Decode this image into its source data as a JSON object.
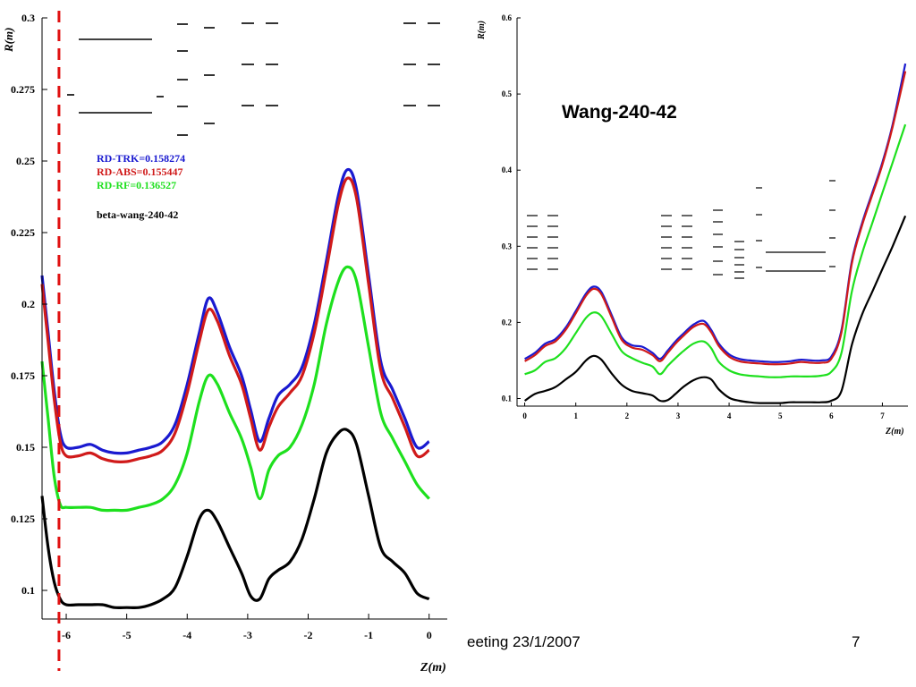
{
  "footer": {
    "text": "eeting 23/1/2007",
    "page_number": "7"
  },
  "colors": {
    "trk": "#1a1ad0",
    "abs": "#d01a1a",
    "rf": "#1ee01e",
    "beta": "#000000",
    "marker": "#e01010"
  },
  "chart_data": [
    {
      "type": "line",
      "title": "",
      "xlabel": "Z(m)",
      "ylabel": "R(m)",
      "xlim": [
        -6.4,
        0.3
      ],
      "ylim": [
        0.09,
        0.3
      ],
      "xticks": [
        -6,
        -5,
        -4,
        -3,
        -2,
        -1,
        0
      ],
      "yticks": [
        0.1,
        0.125,
        0.15,
        0.175,
        0.2,
        0.225,
        0.25,
        0.275,
        0.3
      ],
      "xtick_labels": [
        "-6",
        "-5",
        "-4",
        "-3",
        "-2",
        "-1",
        "0"
      ],
      "ytick_labels": [
        "0.1",
        "0.125",
        "0.15",
        "0.175",
        "0.2",
        "0.225",
        "0.25",
        "0.275",
        "0.3"
      ],
      "vertical_marker_x": -6.12,
      "legend": {
        "placement": "top-left",
        "entries": [
          "RD-TRK=0.158274",
          "RD-ABS=0.155447",
          "RD-RF=0.136527"
        ],
        "note": "beta-wang-240-42"
      },
      "series": [
        {
          "name": "RD-TRK",
          "color_key": "trk",
          "x": [
            -6.4,
            -6.3,
            -6.2,
            -6.1,
            -6.0,
            -5.8,
            -5.6,
            -5.4,
            -5.2,
            -5.0,
            -4.8,
            -4.6,
            -4.4,
            -4.2,
            -4.0,
            -3.8,
            -3.65,
            -3.5,
            -3.3,
            -3.1,
            -2.95,
            -2.8,
            -2.65,
            -2.5,
            -2.3,
            -2.1,
            -1.9,
            -1.7,
            -1.5,
            -1.35,
            -1.2,
            -1.0,
            -0.8,
            -0.6,
            -0.4,
            -0.2,
            0.0
          ],
          "y": [
            0.21,
            0.19,
            0.17,
            0.155,
            0.15,
            0.15,
            0.151,
            0.149,
            0.148,
            0.148,
            0.149,
            0.15,
            0.152,
            0.158,
            0.172,
            0.19,
            0.202,
            0.197,
            0.185,
            0.175,
            0.163,
            0.152,
            0.16,
            0.168,
            0.172,
            0.178,
            0.193,
            0.215,
            0.238,
            0.247,
            0.24,
            0.21,
            0.18,
            0.17,
            0.16,
            0.15,
            0.152
          ]
        },
        {
          "name": "RD-ABS",
          "color_key": "abs",
          "x": [
            -6.4,
            -6.3,
            -6.2,
            -6.1,
            -6.0,
            -5.8,
            -5.6,
            -5.4,
            -5.2,
            -5.0,
            -4.8,
            -4.6,
            -4.4,
            -4.2,
            -4.0,
            -3.8,
            -3.65,
            -3.5,
            -3.3,
            -3.1,
            -2.95,
            -2.8,
            -2.65,
            -2.5,
            -2.3,
            -2.1,
            -1.9,
            -1.7,
            -1.5,
            -1.35,
            -1.2,
            -1.0,
            -0.8,
            -0.6,
            -0.4,
            -0.2,
            0.0
          ],
          "y": [
            0.207,
            0.187,
            0.167,
            0.152,
            0.147,
            0.147,
            0.148,
            0.146,
            0.145,
            0.145,
            0.146,
            0.147,
            0.149,
            0.155,
            0.169,
            0.187,
            0.198,
            0.194,
            0.182,
            0.172,
            0.16,
            0.149,
            0.157,
            0.164,
            0.169,
            0.175,
            0.19,
            0.212,
            0.235,
            0.244,
            0.237,
            0.207,
            0.177,
            0.167,
            0.157,
            0.147,
            0.149
          ]
        },
        {
          "name": "RD-RF",
          "color_key": "rf",
          "x": [
            -6.4,
            -6.3,
            -6.2,
            -6.1,
            -6.0,
            -5.8,
            -5.6,
            -5.4,
            -5.2,
            -5.0,
            -4.8,
            -4.6,
            -4.4,
            -4.2,
            -4.0,
            -3.8,
            -3.65,
            -3.5,
            -3.3,
            -3.1,
            -2.95,
            -2.8,
            -2.65,
            -2.5,
            -2.3,
            -2.1,
            -1.9,
            -1.7,
            -1.5,
            -1.35,
            -1.2,
            -1.0,
            -0.8,
            -0.6,
            -0.4,
            -0.2,
            0.0
          ],
          "y": [
            0.18,
            0.16,
            0.14,
            0.13,
            0.129,
            0.129,
            0.129,
            0.128,
            0.128,
            0.128,
            0.129,
            0.13,
            0.132,
            0.137,
            0.148,
            0.166,
            0.175,
            0.172,
            0.162,
            0.153,
            0.143,
            0.132,
            0.142,
            0.147,
            0.15,
            0.158,
            0.172,
            0.193,
            0.208,
            0.213,
            0.208,
            0.185,
            0.162,
            0.153,
            0.145,
            0.137,
            0.132
          ]
        },
        {
          "name": "beta-wang-240-42",
          "color_key": "beta",
          "x": [
            -6.4,
            -6.3,
            -6.2,
            -6.1,
            -6.0,
            -5.8,
            -5.6,
            -5.4,
            -5.2,
            -5.0,
            -4.8,
            -4.6,
            -4.4,
            -4.2,
            -4.0,
            -3.8,
            -3.65,
            -3.5,
            -3.3,
            -3.1,
            -2.95,
            -2.8,
            -2.65,
            -2.5,
            -2.3,
            -2.1,
            -1.9,
            -1.7,
            -1.5,
            -1.35,
            -1.2,
            -1.0,
            -0.8,
            -0.6,
            -0.4,
            -0.2,
            0.0
          ],
          "y": [
            0.133,
            0.115,
            0.103,
            0.097,
            0.095,
            0.095,
            0.095,
            0.095,
            0.094,
            0.094,
            0.094,
            0.095,
            0.097,
            0.101,
            0.112,
            0.125,
            0.128,
            0.124,
            0.115,
            0.106,
            0.098,
            0.097,
            0.104,
            0.107,
            0.11,
            0.118,
            0.132,
            0.148,
            0.155,
            0.156,
            0.151,
            0.133,
            0.115,
            0.11,
            0.106,
            0.099,
            0.097
          ]
        }
      ]
    },
    {
      "type": "line",
      "title": "Wang-240-42",
      "xlabel": "Z(m)",
      "ylabel": "R(m)",
      "xlim": [
        -0.15,
        7.5
      ],
      "ylim": [
        0.09,
        0.6
      ],
      "xticks": [
        0,
        1,
        2,
        3,
        4,
        5,
        6,
        7
      ],
      "yticks": [
        0.1,
        0.2,
        0.3,
        0.4,
        0.5,
        0.6
      ],
      "xtick_labels": [
        "0",
        "1",
        "2",
        "3",
        "4",
        "5",
        "6",
        "7"
      ],
      "ytick_labels": [
        "0.1",
        "0.2",
        "0.3",
        "0.4",
        "0.5",
        "0.6"
      ],
      "series": [
        {
          "color_key": "trk",
          "x": [
            0,
            0.2,
            0.4,
            0.6,
            0.8,
            1.0,
            1.2,
            1.35,
            1.5,
            1.7,
            1.9,
            2.1,
            2.3,
            2.5,
            2.65,
            2.8,
            2.95,
            3.1,
            3.3,
            3.5,
            3.65,
            3.8,
            4.0,
            4.2,
            4.4,
            4.6,
            4.8,
            5.0,
            5.2,
            5.4,
            5.6,
            5.8,
            6.0,
            6.2,
            6.4,
            6.6,
            6.8,
            7.0,
            7.2,
            7.45
          ],
          "y": [
            0.152,
            0.16,
            0.172,
            0.178,
            0.193,
            0.215,
            0.238,
            0.247,
            0.24,
            0.21,
            0.18,
            0.17,
            0.168,
            0.16,
            0.152,
            0.163,
            0.175,
            0.185,
            0.197,
            0.202,
            0.19,
            0.172,
            0.158,
            0.152,
            0.15,
            0.149,
            0.148,
            0.148,
            0.149,
            0.151,
            0.15,
            0.15,
            0.155,
            0.19,
            0.28,
            0.33,
            0.37,
            0.41,
            0.46,
            0.54
          ]
        },
        {
          "color_key": "abs",
          "x": [
            0,
            0.2,
            0.4,
            0.6,
            0.8,
            1.0,
            1.2,
            1.35,
            1.5,
            1.7,
            1.9,
            2.1,
            2.3,
            2.5,
            2.65,
            2.8,
            2.95,
            3.1,
            3.3,
            3.5,
            3.65,
            3.8,
            4.0,
            4.2,
            4.4,
            4.6,
            4.8,
            5.0,
            5.2,
            5.4,
            5.6,
            5.8,
            6.0,
            6.2,
            6.4,
            6.6,
            6.8,
            7.0,
            7.2,
            7.45
          ],
          "y": [
            0.149,
            0.157,
            0.169,
            0.175,
            0.19,
            0.212,
            0.235,
            0.244,
            0.237,
            0.207,
            0.177,
            0.167,
            0.164,
            0.157,
            0.149,
            0.16,
            0.172,
            0.182,
            0.194,
            0.198,
            0.187,
            0.169,
            0.155,
            0.149,
            0.147,
            0.146,
            0.145,
            0.145,
            0.146,
            0.148,
            0.147,
            0.147,
            0.152,
            0.187,
            0.277,
            0.327,
            0.367,
            0.407,
            0.457,
            0.53
          ]
        },
        {
          "color_key": "rf",
          "x": [
            0,
            0.2,
            0.4,
            0.6,
            0.8,
            1.0,
            1.2,
            1.35,
            1.5,
            1.7,
            1.9,
            2.1,
            2.3,
            2.5,
            2.65,
            2.8,
            2.95,
            3.1,
            3.3,
            3.5,
            3.65,
            3.8,
            4.0,
            4.2,
            4.4,
            4.6,
            4.8,
            5.0,
            5.2,
            5.4,
            5.6,
            5.8,
            6.0,
            6.2,
            6.4,
            6.6,
            6.8,
            7.0,
            7.2,
            7.45
          ],
          "y": [
            0.132,
            0.137,
            0.148,
            0.153,
            0.166,
            0.186,
            0.206,
            0.213,
            0.208,
            0.185,
            0.162,
            0.153,
            0.147,
            0.142,
            0.132,
            0.143,
            0.153,
            0.162,
            0.172,
            0.175,
            0.166,
            0.148,
            0.137,
            0.132,
            0.13,
            0.129,
            0.128,
            0.128,
            0.129,
            0.129,
            0.129,
            0.13,
            0.135,
            0.16,
            0.24,
            0.29,
            0.33,
            0.37,
            0.41,
            0.46
          ]
        },
        {
          "color_key": "beta",
          "x": [
            0,
            0.2,
            0.4,
            0.6,
            0.8,
            1.0,
            1.2,
            1.35,
            1.5,
            1.7,
            1.9,
            2.1,
            2.3,
            2.5,
            2.65,
            2.8,
            2.95,
            3.1,
            3.3,
            3.5,
            3.65,
            3.8,
            4.0,
            4.2,
            4.4,
            4.6,
            4.8,
            5.0,
            5.2,
            5.4,
            5.6,
            5.8,
            6.0,
            6.2,
            6.4,
            6.6,
            6.8,
            7.0,
            7.2,
            7.45
          ],
          "y": [
            0.097,
            0.106,
            0.11,
            0.115,
            0.125,
            0.135,
            0.15,
            0.156,
            0.151,
            0.133,
            0.118,
            0.11,
            0.107,
            0.104,
            0.097,
            0.098,
            0.106,
            0.115,
            0.124,
            0.128,
            0.125,
            0.112,
            0.101,
            0.097,
            0.095,
            0.094,
            0.094,
            0.094,
            0.095,
            0.095,
            0.095,
            0.095,
            0.097,
            0.11,
            0.17,
            0.21,
            0.24,
            0.27,
            0.3,
            0.34
          ]
        }
      ]
    }
  ]
}
